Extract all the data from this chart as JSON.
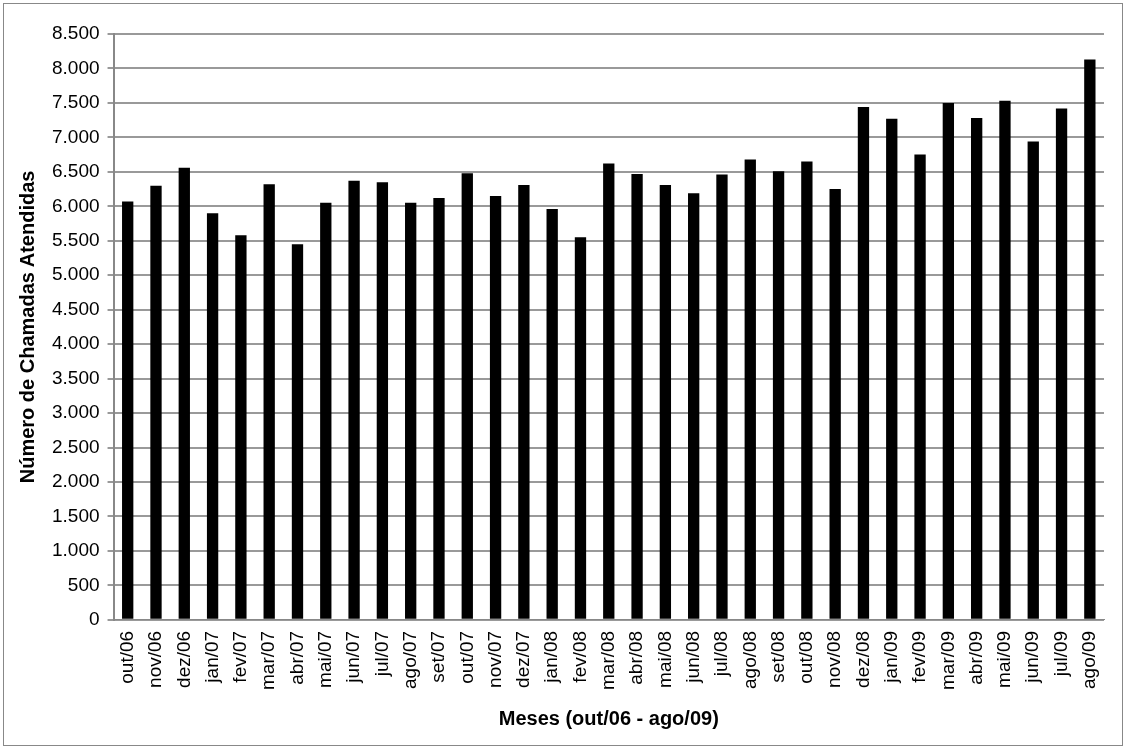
{
  "chart_data": {
    "type": "bar",
    "xlabel": "Meses (out/06 - ago/09)",
    "ylabel": "Número de Chamadas Atendidas",
    "categories": [
      "out/06",
      "nov/06",
      "dez/06",
      "jan/07",
      "fev/07",
      "mar/07",
      "abr/07",
      "mai/07",
      "jun/07",
      "jul/07",
      "ago/07",
      "set/07",
      "out/07",
      "nov/07",
      "dez/07",
      "jan/08",
      "fev/08",
      "mar/08",
      "abr/08",
      "mai/08",
      "jun/08",
      "jul/08",
      "ago/08",
      "set/08",
      "out/08",
      "nov/08",
      "dez/08",
      "jan/09",
      "fev/09",
      "mar/09",
      "abr/09",
      "mai/09",
      "jun/09",
      "jul/09",
      "ago/09"
    ],
    "values": [
      6070,
      6300,
      6560,
      5900,
      5580,
      6320,
      5450,
      6050,
      6370,
      6350,
      6050,
      6120,
      6480,
      6150,
      6310,
      5960,
      5550,
      6620,
      6470,
      6310,
      6190,
      6460,
      6680,
      6510,
      6650,
      6250,
      7440,
      7270,
      6750,
      7500,
      7280,
      7530,
      6940,
      7420,
      8130
    ],
    "color": "#000000",
    "ylim": [
      0,
      8500
    ],
    "yticks": [
      0,
      500,
      {
        "value": 1000,
        "label": "1.000"
      },
      {
        "value": 1500,
        "label": "1.500"
      },
      {
        "value": 2000,
        "label": "2.000"
      },
      {
        "value": 2500,
        "label": "2.500"
      },
      {
        "value": 3000,
        "label": "3.000"
      },
      {
        "value": 3500,
        "label": "3.500"
      },
      {
        "value": 4000,
        "label": "4.000"
      },
      {
        "value": 4500,
        "label": "4.500"
      },
      {
        "value": 5000,
        "label": "5.000"
      },
      {
        "value": 5500,
        "label": "5.500"
      },
      {
        "value": 6000,
        "label": "6.000"
      },
      {
        "value": 6500,
        "label": "6.500"
      },
      {
        "value": 7000,
        "label": "7.000"
      },
      {
        "value": 7500,
        "label": "7.500"
      },
      {
        "value": 8000,
        "label": "8.000"
      },
      {
        "value": 8500,
        "label": "8.500"
      }
    ],
    "grid": "y",
    "legend": false
  }
}
